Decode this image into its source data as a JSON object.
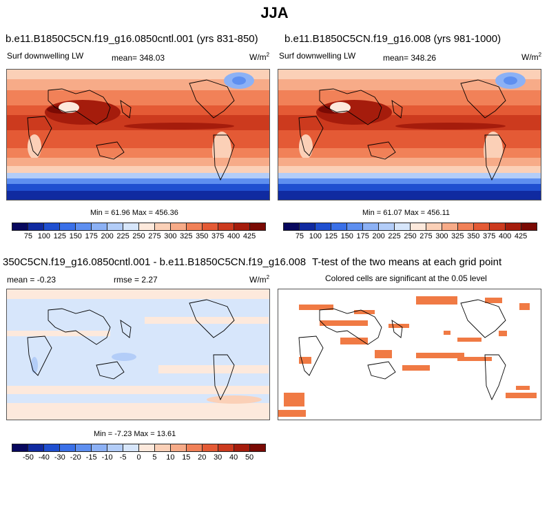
{
  "page_title": "JJA",
  "panels": [
    {
      "title": "b.e11.B1850C5CN.f19_g16.0850cntl.001 (yrs 831-850)",
      "left_label": "Surf downwelling LW",
      "center_label": "mean= 348.03",
      "units_base": "W/m",
      "units_exp": "2",
      "minmax": "Min =  61.96 Max = 456.36"
    },
    {
      "title": "b.e11.B1850C5CN.f19_g16.008 (yrs 981-1000)",
      "left_label": "Surf downwelling LW",
      "center_label": "mean= 348.26",
      "units_base": "W/m",
      "units_exp": "2",
      "minmax": "Min =  61.07 Max = 456.11"
    },
    {
      "title": "350C5CN.f19_g16.0850cntl.001 - b.e11.B1850C5CN.f19_g16.008",
      "left_label": "mean =  -0.23",
      "center_label": "rmse =   2.27",
      "units_base": "W/m",
      "units_exp": "2",
      "minmax": "Min =  -7.23 Max =  13.61"
    },
    {
      "title": "T-test of the two means at each grid point",
      "subtitle": "Colored cells are significant at the 0.05 level"
    }
  ],
  "colorbar_abs": {
    "labels": [
      "75",
      "100",
      "125",
      "150",
      "175",
      "200",
      "225",
      "250",
      "275",
      "300",
      "325",
      "350",
      "375",
      "400",
      "425"
    ],
    "colors": [
      "#08085e",
      "#102aa0",
      "#1f4fd0",
      "#3a70e8",
      "#5e8ff0",
      "#8cb1f5",
      "#b3cdf8",
      "#d7e6fb",
      "#fde9dc",
      "#fbd0b7",
      "#f7ab88",
      "#f18158",
      "#e45a35",
      "#cc3a1e",
      "#a51c0c",
      "#7a0a04"
    ]
  },
  "colorbar_diff": {
    "labels": [
      "-50",
      "-40",
      "-30",
      "-20",
      "-15",
      "-10",
      "-5",
      "0",
      "5",
      "10",
      "15",
      "20",
      "30",
      "40",
      "50"
    ],
    "colors": [
      "#08085e",
      "#102aa0",
      "#1f4fd0",
      "#3a70e8",
      "#5e8ff0",
      "#8cb1f5",
      "#b3cdf8",
      "#d7e6fb",
      "#fde9dc",
      "#fbd0b7",
      "#f7ab88",
      "#f18158",
      "#e45a35",
      "#cc3a1e",
      "#a51c0c",
      "#7a0a04"
    ]
  },
  "significance_color": "#f07a44"
}
